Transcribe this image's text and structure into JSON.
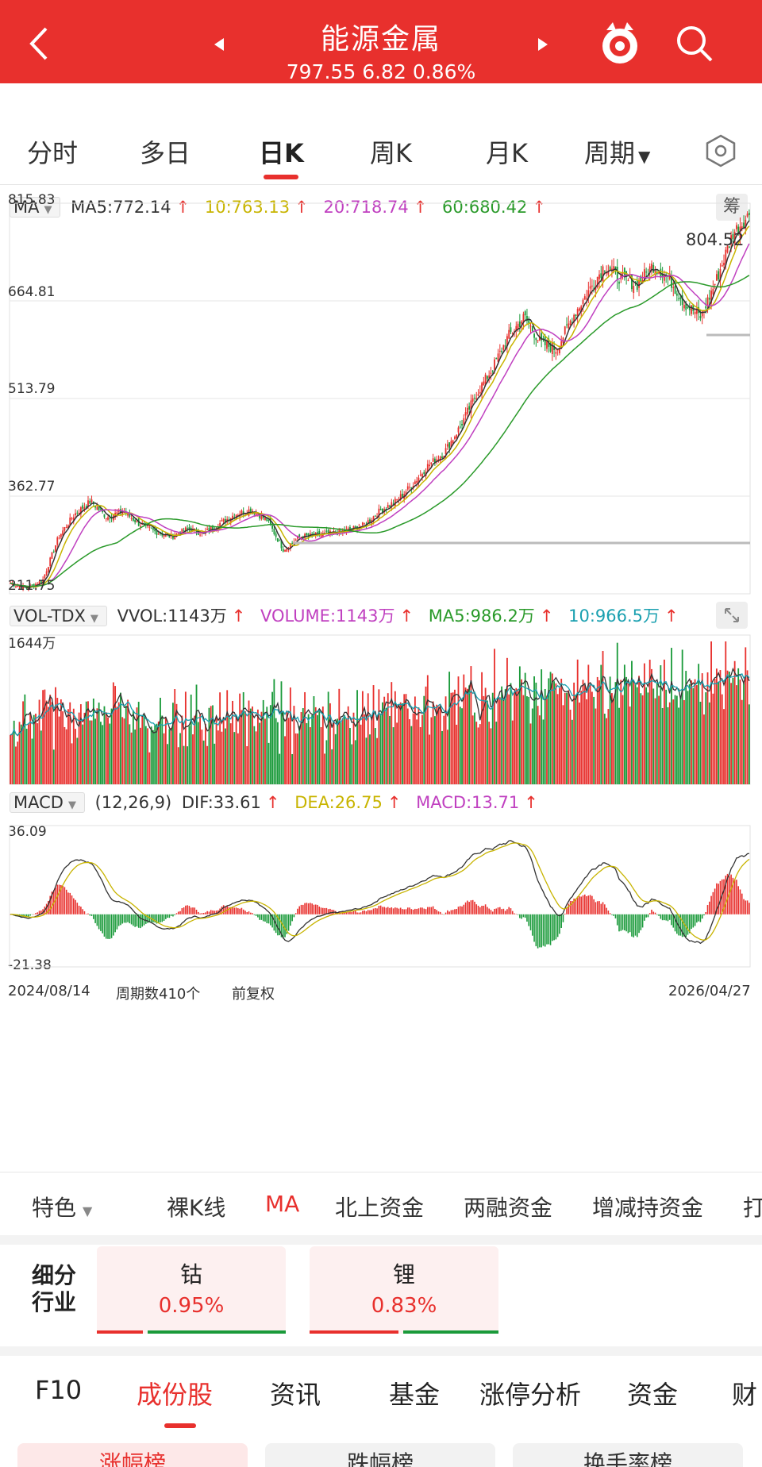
{
  "header": {
    "title": "能源金属",
    "price": "797.55",
    "change": "6.82",
    "change_pct": "0.86%"
  },
  "period_tabs": [
    {
      "label": "分时"
    },
    {
      "label": "多日"
    },
    {
      "label": "日K"
    },
    {
      "label": "周K"
    },
    {
      "label": "月K"
    },
    {
      "label": "周期"
    }
  ],
  "ma_indicator": {
    "name": "MA",
    "ma5": "MA5:772.14",
    "ma10": "10:763.13",
    "ma20": "20:718.74",
    "ma60": "60:680.42",
    "chip_button": "筹"
  },
  "price_axis": [
    "815.83",
    "664.81",
    "513.79",
    "362.77",
    "211.75"
  ],
  "max_price_label": "804.52",
  "volume_indicator": {
    "name": "VOL-TDX",
    "vvol": "VVOL:1143万",
    "volume": "VOLUME:1143万",
    "ma5": "MA5:986.2万",
    "ma10": "10:966.5万",
    "axis_max": "1644万"
  },
  "macd_indicator": {
    "name": "MACD",
    "params": "(12,26,9)",
    "dif": "DIF:33.61",
    "dea": "DEA:26.75",
    "macd": "MACD:13.71",
    "axis_max": "36.09",
    "axis_min": "-21.38"
  },
  "date_range": {
    "start": "2024/08/14",
    "count": "周期数410个",
    "adjust": "前复权",
    "end": "2026/04/27"
  },
  "chart_data": {
    "type": "candlestick",
    "ylim": [
      211.75,
      815.83
    ],
    "start_date": "2024/08/14",
    "end_date": "2026/04/27",
    "periods": 410,
    "max_high": 804.52,
    "close_trend": [
      228,
      220,
      232,
      300,
      335,
      355,
      330,
      340,
      320,
      308,
      300,
      312,
      305,
      320,
      335,
      342,
      325,
      280,
      300,
      302,
      305,
      310,
      318,
      340,
      355,
      380,
      410,
      430,
      470,
      520,
      560,
      610,
      640,
      600,
      590,
      640,
      680,
      720,
      700,
      690,
      720,
      700,
      660,
      640,
      700,
      770,
      797.55
    ]
  },
  "subbar": {
    "feature": "特色",
    "items": [
      "裸K线",
      "MA",
      "北上资金",
      "两融资金",
      "增减持资金",
      "打"
    ]
  },
  "industry": {
    "label": "细分行业",
    "items": [
      {
        "name": "钴",
        "change": "0.95%"
      },
      {
        "name": "锂",
        "change": "0.83%"
      }
    ]
  },
  "bottom_tabs": [
    "F10",
    "成份股",
    "资讯",
    "基金",
    "涨停分析",
    "资金",
    "财"
  ],
  "bottom_pills": [
    "涨幅榜",
    "跌幅榜",
    "换手率榜"
  ],
  "colors": {
    "header_red": "#e8302d",
    "up": "#e8302d",
    "down": "#1a9a3a",
    "ma5": "#333333",
    "ma10": "#c8b400",
    "ma20": "#c040c0",
    "ma60": "#2a9a2a"
  }
}
